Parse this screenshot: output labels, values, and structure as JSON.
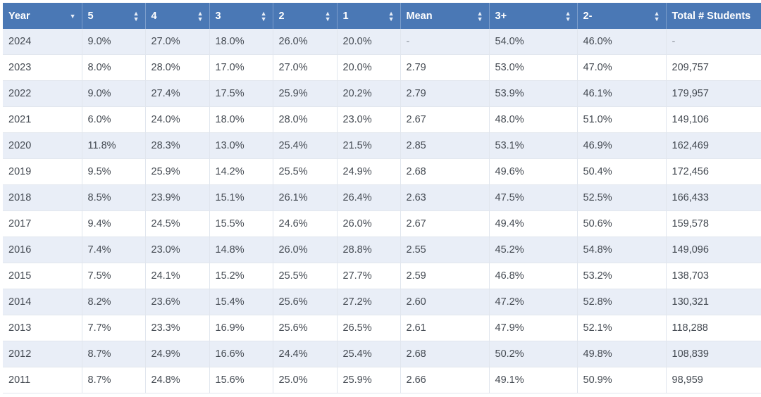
{
  "table": {
    "columns": [
      "Year",
      "5",
      "4",
      "3",
      "2",
      "1",
      "Mean",
      "3+",
      "2-",
      "Total # Students"
    ],
    "rows": [
      [
        "2024",
        "9.0%",
        "27.0%",
        "18.0%",
        "26.0%",
        "20.0%",
        "-",
        "54.0%",
        "46.0%",
        "-"
      ],
      [
        "2023",
        "8.0%",
        "28.0%",
        "17.0%",
        "27.0%",
        "20.0%",
        "2.79",
        "53.0%",
        "47.0%",
        "209,757"
      ],
      [
        "2022",
        "9.0%",
        "27.4%",
        "17.5%",
        "25.9%",
        "20.2%",
        "2.79",
        "53.9%",
        "46.1%",
        "179,957"
      ],
      [
        "2021",
        "6.0%",
        "24.0%",
        "18.0%",
        "28.0%",
        "23.0%",
        "2.67",
        "48.0%",
        "51.0%",
        "149,106"
      ],
      [
        "2020",
        "11.8%",
        "28.3%",
        "13.0%",
        "25.4%",
        "21.5%",
        "2.85",
        "53.1%",
        "46.9%",
        "162,469"
      ],
      [
        "2019",
        "9.5%",
        "25.9%",
        "14.2%",
        "25.5%",
        "24.9%",
        "2.68",
        "49.6%",
        "50.4%",
        "172,456"
      ],
      [
        "2018",
        "8.5%",
        "23.9%",
        "15.1%",
        "26.1%",
        "26.4%",
        "2.63",
        "47.5%",
        "52.5%",
        "166,433"
      ],
      [
        "2017",
        "9.4%",
        "24.5%",
        "15.5%",
        "24.6%",
        "26.0%",
        "2.67",
        "49.4%",
        "50.6%",
        "159,578"
      ],
      [
        "2016",
        "7.4%",
        "23.0%",
        "14.8%",
        "26.0%",
        "28.8%",
        "2.55",
        "45.2%",
        "54.8%",
        "149,096"
      ],
      [
        "2015",
        "7.5%",
        "24.1%",
        "15.2%",
        "25.5%",
        "27.7%",
        "2.59",
        "46.8%",
        "53.2%",
        "138,703"
      ],
      [
        "2014",
        "8.2%",
        "23.6%",
        "15.4%",
        "25.6%",
        "27.2%",
        "2.60",
        "47.2%",
        "52.8%",
        "130,321"
      ],
      [
        "2013",
        "7.7%",
        "23.3%",
        "16.9%",
        "25.6%",
        "26.5%",
        "2.61",
        "47.9%",
        "52.1%",
        "118,288"
      ],
      [
        "2012",
        "8.7%",
        "24.9%",
        "16.6%",
        "24.4%",
        "25.4%",
        "2.68",
        "50.2%",
        "49.8%",
        "108,839"
      ],
      [
        "2011",
        "8.7%",
        "24.8%",
        "15.6%",
        "25.0%",
        "25.9%",
        "2.66",
        "49.1%",
        "50.9%",
        "98,959"
      ]
    ],
    "sort": {
      "column": "Year",
      "direction": "descending",
      "active_icon": "sort-down-icon",
      "inactive_icon": "sort-both-icon"
    }
  },
  "colors": {
    "header_bg": "#4a78b5",
    "row_stripe": "#e9eef7",
    "text": "#444a52"
  }
}
